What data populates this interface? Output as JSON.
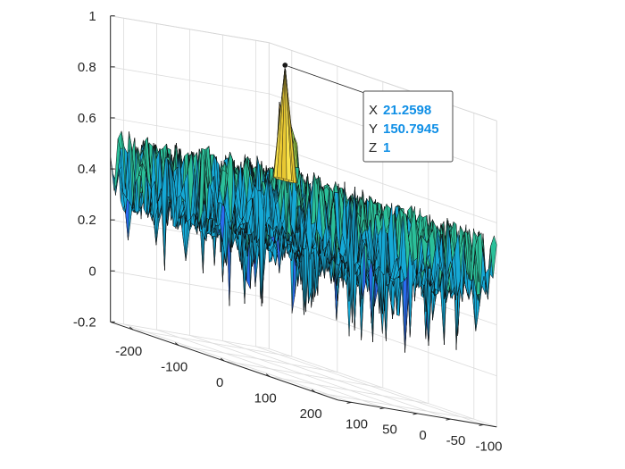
{
  "chart_data": {
    "type": "surface",
    "title": "",
    "xlabel": "",
    "ylabel": "",
    "zlabel": "",
    "grid": true,
    "x_ticks": [
      -200,
      -100,
      0,
      100,
      200
    ],
    "y_ticks": [
      100,
      50,
      0,
      -50,
      -100
    ],
    "z_ticks": [
      -0.2,
      0,
      0.2,
      0.4,
      0.6,
      0.8,
      1
    ],
    "x_tick_labels": [
      "-200",
      "-100",
      "0",
      "100",
      "200"
    ],
    "y_tick_labels": [
      "100",
      "50",
      "0",
      "-50",
      "-100"
    ],
    "z_tick_labels": [
      "-0.2",
      "0",
      "0.2",
      "0.4",
      "0.6",
      "0.8",
      "1"
    ],
    "xlim": [
      -250,
      250
    ],
    "ylim": [
      -120,
      120
    ],
    "zlim": [
      -0.2,
      1
    ],
    "noise_floor_mean": 0.4,
    "noise_floor_range": [
      -0.05,
      0.58
    ],
    "peak": {
      "x": 21.2598,
      "y": 150.7945,
      "z": 1
    },
    "colormap": "parula",
    "colormap_colors": [
      "#3e26a8",
      "#2b6cf0",
      "#15a9d6",
      "#2bc09a",
      "#92bf45",
      "#f0ba38",
      "#f9fb0e"
    ]
  },
  "datatip": {
    "x_key": "X",
    "x_value": "21.2598",
    "y_key": "Y",
    "y_value": "150.7945",
    "z_key": "Z",
    "z_value": "1"
  }
}
